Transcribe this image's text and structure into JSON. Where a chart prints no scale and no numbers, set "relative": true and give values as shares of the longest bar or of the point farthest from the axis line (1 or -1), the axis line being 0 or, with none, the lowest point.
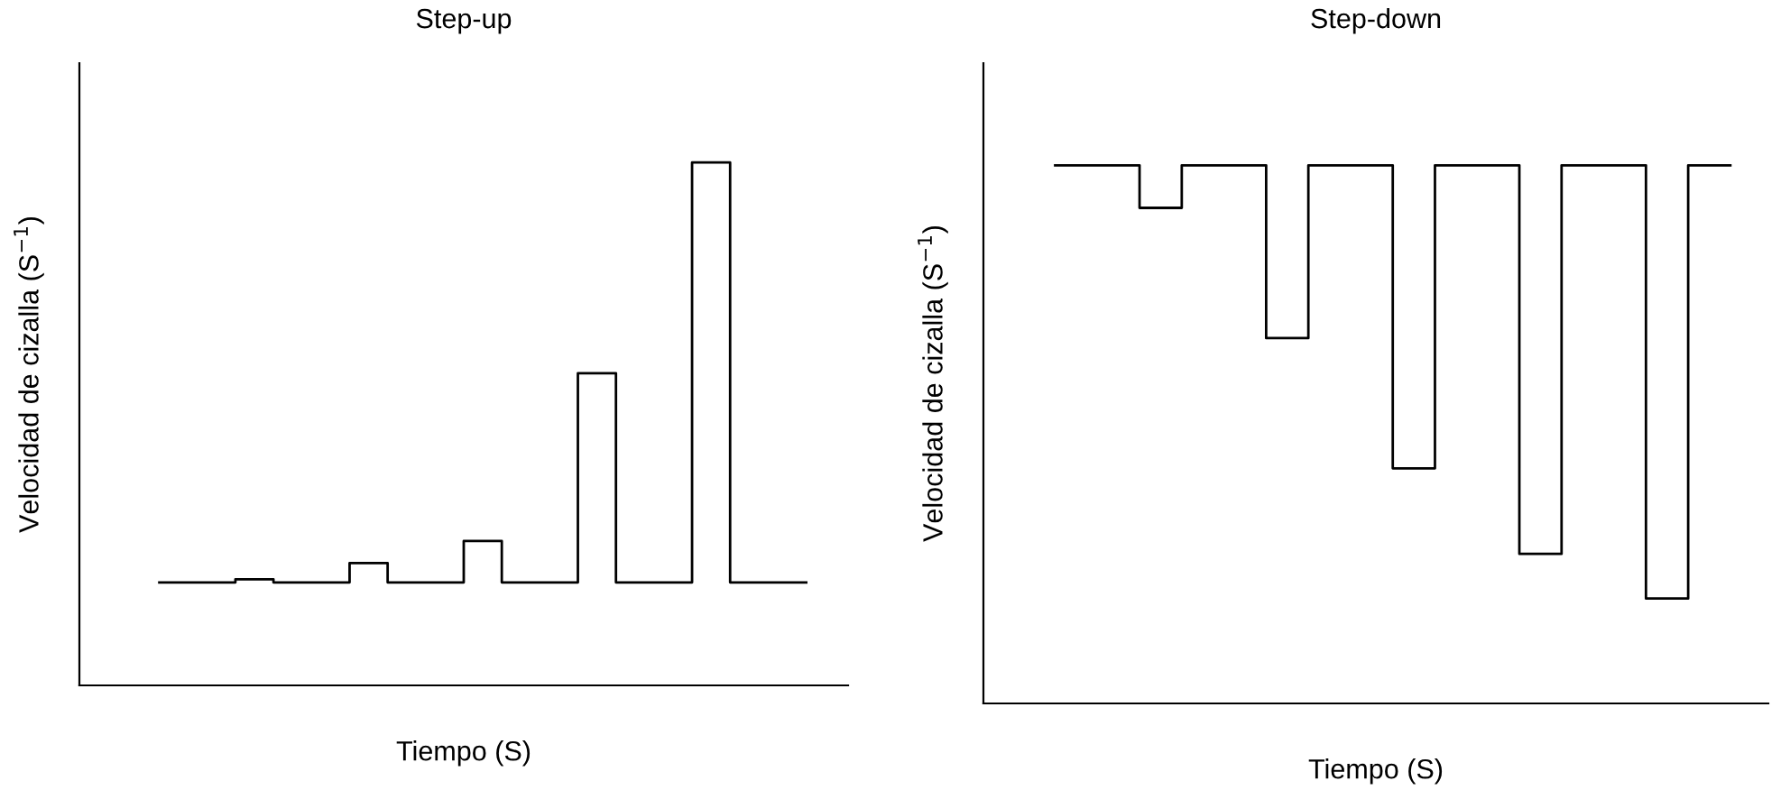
{
  "chart_data": [
    {
      "type": "step",
      "title": "Step-up",
      "xlabel": "Tiempo (S)",
      "ylabel": "Velocidad de cizalla (S$^{−1}$)",
      "relative": true,
      "tick_labels": false,
      "grid": false,
      "legend": false,
      "color": "#000000",
      "categories": [
        null,
        null,
        null,
        null,
        null,
        null,
        null,
        null,
        null,
        null,
        null,
        null,
        null,
        null,
        null,
        null,
        null,
        null
      ],
      "values": [
        0.197,
        0.197,
        0.203,
        0.197,
        0.197,
        0.234,
        0.197,
        0.197,
        0.276,
        0.197,
        0.197,
        0.597,
        0.197,
        0.197,
        1,
        0.197,
        0.197,
        0.197
      ]
    },
    {
      "type": "step",
      "title": "Step-down",
      "xlabel": "Tiempo (S)",
      "ylabel": "Velocidad de cizalla (S$^{−1}$)",
      "relative": true,
      "tick_labels": false,
      "grid": false,
      "legend": false,
      "color": "#000000",
      "categories": [
        null,
        null,
        null,
        null,
        null,
        null,
        null,
        null,
        null,
        null,
        null,
        null,
        null,
        null,
        null,
        null,
        null
      ],
      "values": [
        1,
        1,
        0.921,
        1,
        1,
        0.679,
        1,
        1,
        0.437,
        1,
        1,
        0.278,
        1,
        1,
        0.195,
        1,
        1
      ]
    }
  ]
}
